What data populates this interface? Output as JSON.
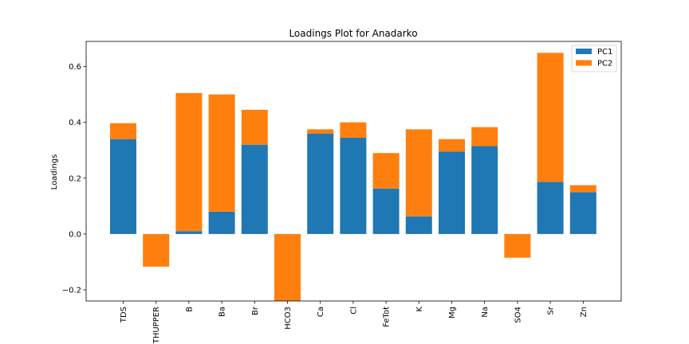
{
  "chart_data": {
    "type": "bar",
    "stacked": true,
    "title": "Loadings Plot for Anadarko",
    "xlabel": "",
    "ylabel": "Loadings",
    "ylim": [
      -0.24,
      0.69
    ],
    "yticks": [
      -0.2,
      0.0,
      0.2,
      0.4,
      0.6
    ],
    "ytick_labels": [
      "−0.2",
      "0.0",
      "0.2",
      "0.4",
      "0.6"
    ],
    "grid": false,
    "legend_position": "top-right",
    "categories": [
      "TDS",
      "THUPPER",
      "B",
      "Ba",
      "Br",
      "HCO3",
      "Ca",
      "Cl",
      "FeTot",
      "K",
      "Mg",
      "Na",
      "SO4",
      "Sr",
      "Zn"
    ],
    "series": [
      {
        "name": "PC1",
        "color": "#1f77b4",
        "values": [
          0.34,
          0.0,
          0.01,
          0.08,
          0.32,
          0.0,
          0.36,
          0.345,
          0.163,
          0.063,
          0.295,
          0.315,
          0.0,
          0.187,
          0.15
        ]
      },
      {
        "name": "PC2",
        "color": "#ff7f0e",
        "values": [
          0.057,
          -0.117,
          0.495,
          0.42,
          0.125,
          -0.26,
          0.015,
          0.055,
          0.127,
          0.312,
          0.045,
          0.068,
          -0.085,
          0.462,
          0.025
        ]
      }
    ]
  }
}
